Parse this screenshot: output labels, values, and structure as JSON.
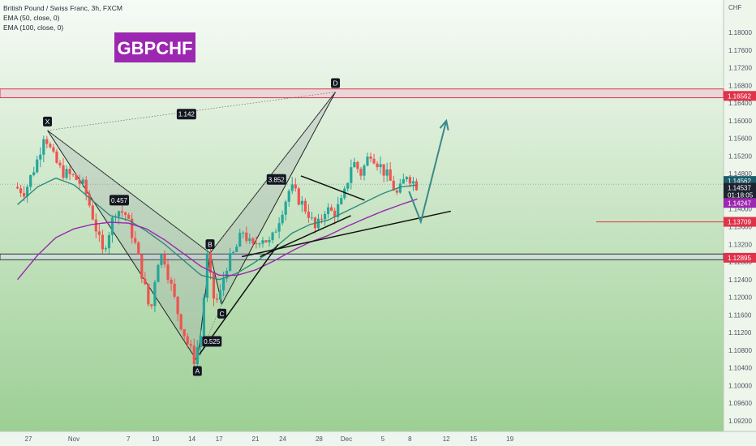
{
  "header": {
    "title": "British Pound / Swiss Franc, 3h, FXCM",
    "indicators": [
      "EMA (50, close, 0)",
      "EMA (100, close, 0)"
    ],
    "symbol_badge": "GBPCHF",
    "currency": "CHF"
  },
  "colors": {
    "bull": "#26a69a",
    "bear": "#ef5350",
    "ema50": "#2e8b7a",
    "ema100": "#9c27b0",
    "resistance": "#e0334a",
    "badge": "#9c27b0",
    "arrow": "#3a8a8a"
  },
  "chart_data": {
    "type": "candlestick",
    "ylim": [
      1.09,
      1.19
    ],
    "y_ticks": [
      1.092,
      1.096,
      1.1,
      1.104,
      1.108,
      1.112,
      1.116,
      1.12,
      1.124,
      1.128,
      1.132,
      1.136,
      1.14,
      1.144,
      1.148,
      1.152,
      1.156,
      1.16,
      1.164,
      1.168,
      1.172,
      1.176,
      1.18
    ],
    "y_tick_labels": [
      "1.09200",
      "1.09600",
      "1.10000",
      "1.10400",
      "1.10800",
      "1.11200",
      "1.11600",
      "1.12000",
      "1.12400",
      "1.12800",
      "1.13200",
      "1.13600",
      "1.14000",
      "1.14400",
      "1.14800",
      "1.15200",
      "1.15600",
      "1.16000",
      "1.16400",
      "1.16800",
      "1.17200",
      "1.17600",
      "1.18000"
    ],
    "x_ticks": [
      {
        "label": "27",
        "day": -5
      },
      {
        "label": "Nov",
        "day": 0
      },
      {
        "label": "7",
        "day": 6
      },
      {
        "label": "10",
        "day": 9
      },
      {
        "label": "14",
        "day": 13
      },
      {
        "label": "17",
        "day": 16
      },
      {
        "label": "21",
        "day": 20
      },
      {
        "label": "24",
        "day": 23
      },
      {
        "label": "28",
        "day": 27
      },
      {
        "label": "Dec",
        "day": 30
      },
      {
        "label": "5",
        "day": 34
      },
      {
        "label": "8",
        "day": 37
      },
      {
        "label": "12",
        "day": 41
      },
      {
        "label": "15",
        "day": 44
      },
      {
        "label": "19",
        "day": 48
      }
    ],
    "price_key": [
      {
        "day": -6.2,
        "price": 1.145
      },
      {
        "day": -5.0,
        "price": 1.144
      },
      {
        "day": -3.5,
        "price": 1.152
      },
      {
        "day": -2.9,
        "price": 1.1575
      },
      {
        "day": -2.0,
        "price": 1.152
      },
      {
        "day": -1.0,
        "price": 1.1485
      },
      {
        "day": 0.5,
        "price": 1.147
      },
      {
        "day": 1.5,
        "price": 1.145
      },
      {
        "day": 2.5,
        "price": 1.138
      },
      {
        "day": 3.5,
        "price": 1.13
      },
      {
        "day": 5.0,
        "price": 1.14
      },
      {
        "day": 6.0,
        "price": 1.139
      },
      {
        "day": 7.0,
        "price": 1.133
      },
      {
        "day": 8.0,
        "price": 1.124
      },
      {
        "day": 8.8,
        "price": 1.116
      },
      {
        "day": 9.5,
        "price": 1.128
      },
      {
        "day": 10.2,
        "price": 1.13
      },
      {
        "day": 11.0,
        "price": 1.123
      },
      {
        "day": 12.0,
        "price": 1.115
      },
      {
        "day": 12.8,
        "price": 1.11
      },
      {
        "day": 13.6,
        "price": 1.106
      },
      {
        "day": 14.4,
        "price": 1.112
      },
      {
        "day": 15.0,
        "price": 1.1295
      },
      {
        "day": 15.7,
        "price": 1.12
      },
      {
        "day": 16.3,
        "price": 1.119
      },
      {
        "day": 17.1,
        "price": 1.127
      },
      {
        "day": 18.0,
        "price": 1.13
      },
      {
        "day": 19.0,
        "price": 1.135
      },
      {
        "day": 20.0,
        "price": 1.131
      },
      {
        "day": 21.0,
        "price": 1.134
      },
      {
        "day": 22.0,
        "price": 1.132
      },
      {
        "day": 23.3,
        "price": 1.14
      },
      {
        "day": 24.2,
        "price": 1.145
      },
      {
        "day": 25.2,
        "price": 1.142
      },
      {
        "day": 26.2,
        "price": 1.139
      },
      {
        "day": 27.0,
        "price": 1.135
      },
      {
        "day": 28.0,
        "price": 1.14
      },
      {
        "day": 29.0,
        "price": 1.139
      },
      {
        "day": 30.0,
        "price": 1.142
      },
      {
        "day": 31.0,
        "price": 1.151
      },
      {
        "day": 32.0,
        "price": 1.148
      },
      {
        "day": 33.0,
        "price": 1.153
      },
      {
        "day": 34.0,
        "price": 1.15
      },
      {
        "day": 35.0,
        "price": 1.147
      },
      {
        "day": 36.0,
        "price": 1.143
      },
      {
        "day": 37.0,
        "price": 1.148
      },
      {
        "day": 38.0,
        "price": 1.1455
      }
    ],
    "ema50_key": [
      {
        "day": -6.2,
        "price": 1.141
      },
      {
        "day": -4.0,
        "price": 1.145
      },
      {
        "day": -2.0,
        "price": 1.147
      },
      {
        "day": 0.0,
        "price": 1.1455
      },
      {
        "day": 2.0,
        "price": 1.142
      },
      {
        "day": 4.0,
        "price": 1.1385
      },
      {
        "day": 6.0,
        "price": 1.1375
      },
      {
        "day": 8.0,
        "price": 1.135
      },
      {
        "day": 10.0,
        "price": 1.132
      },
      {
        "day": 12.0,
        "price": 1.1285
      },
      {
        "day": 14.0,
        "price": 1.125
      },
      {
        "day": 16.0,
        "price": 1.124
      },
      {
        "day": 18.0,
        "price": 1.1255
      },
      {
        "day": 20.0,
        "price": 1.128
      },
      {
        "day": 22.0,
        "price": 1.131
      },
      {
        "day": 24.0,
        "price": 1.1345
      },
      {
        "day": 26.0,
        "price": 1.1365
      },
      {
        "day": 28.0,
        "price": 1.1375
      },
      {
        "day": 30.0,
        "price": 1.1395
      },
      {
        "day": 32.0,
        "price": 1.1415
      },
      {
        "day": 34.0,
        "price": 1.1435
      },
      {
        "day": 36.0,
        "price": 1.145
      },
      {
        "day": 38.0,
        "price": 1.1455
      }
    ],
    "ema100_key": [
      {
        "day": -6.2,
        "price": 1.124
      },
      {
        "day": -4.0,
        "price": 1.1295
      },
      {
        "day": -2.0,
        "price": 1.1335
      },
      {
        "day": 0.0,
        "price": 1.1355
      },
      {
        "day": 2.0,
        "price": 1.1365
      },
      {
        "day": 4.0,
        "price": 1.137
      },
      {
        "day": 6.0,
        "price": 1.1368
      },
      {
        "day": 8.0,
        "price": 1.1355
      },
      {
        "day": 10.0,
        "price": 1.133
      },
      {
        "day": 12.0,
        "price": 1.13
      },
      {
        "day": 14.0,
        "price": 1.127
      },
      {
        "day": 16.0,
        "price": 1.125
      },
      {
        "day": 18.0,
        "price": 1.125
      },
      {
        "day": 20.0,
        "price": 1.1262
      },
      {
        "day": 22.0,
        "price": 1.1282
      },
      {
        "day": 24.0,
        "price": 1.1305
      },
      {
        "day": 26.0,
        "price": 1.1325
      },
      {
        "day": 28.0,
        "price": 1.134
      },
      {
        "day": 30.0,
        "price": 1.136
      },
      {
        "day": 32.0,
        "price": 1.1378
      },
      {
        "day": 34.0,
        "price": 1.1395
      },
      {
        "day": 36.0,
        "price": 1.141
      },
      {
        "day": 38.0,
        "price": 1.1424
      }
    ],
    "harmonic_points": [
      {
        "label": "X",
        "day": -2.9,
        "price": 1.1578
      },
      {
        "label": "A",
        "day": 13.6,
        "price": 1.1055
      },
      {
        "label": "B",
        "day": 15.0,
        "price": 1.13
      },
      {
        "label": "C",
        "day": 16.3,
        "price": 1.1185
      },
      {
        "label": "D",
        "day": 28.8,
        "price": 1.1665
      }
    ],
    "ratio_labels": [
      {
        "text": "1.142",
        "day": 12.4,
        "price": 1.1615
      },
      {
        "text": "0.457",
        "day": 5.0,
        "price": 1.142
      },
      {
        "text": "0.525",
        "day": 15.2,
        "price": 1.11
      },
      {
        "text": "3.852",
        "day": 22.3,
        "price": 1.1467
      }
    ],
    "price_labels": [
      {
        "text": "1.16562",
        "price": 1.16562,
        "kind": "resistance"
      },
      {
        "text": "1.14562",
        "price": 1.14562,
        "kind": "current"
      },
      {
        "text": "1.14537",
        "price": 1.14537,
        "kind": "ema50"
      },
      {
        "text": "01:18:05",
        "price": 1.14537,
        "kind": "countdown"
      },
      {
        "text": "1.14247",
        "price": 1.14247,
        "kind": "ema100"
      },
      {
        "text": "1.13709",
        "price": 1.13709,
        "kind": "level"
      },
      {
        "text": "1.12895",
        "price": 1.12895,
        "kind": "support"
      }
    ],
    "zones": [
      {
        "name": "resistance",
        "from": 1.1652,
        "to": 1.1672
      },
      {
        "name": "support",
        "from": 1.1285,
        "to": 1.1298
      }
    ],
    "lines": [
      {
        "name": "trend-support-steep",
        "from": {
          "day": 13.8,
          "price": 1.107
        },
        "to": {
          "day": 22.5,
          "price": 1.132
        }
      },
      {
        "name": "trend-support-flat",
        "from": {
          "day": 18.5,
          "price": 1.1292
        },
        "to": {
          "day": 41.5,
          "price": 1.1395
        }
      },
      {
        "name": "trend-support-mid",
        "from": {
          "day": 20.5,
          "price": 1.1292
        },
        "to": {
          "day": 30.5,
          "price": 1.1385
        }
      },
      {
        "name": "trend-resistance",
        "from": {
          "day": 25.0,
          "price": 1.1475
        },
        "to": {
          "day": 32.0,
          "price": 1.142
        }
      }
    ],
    "projection": [
      {
        "day": 36.9,
        "price": 1.144
      },
      {
        "day": 38.2,
        "price": 1.1371
      },
      {
        "day": 41.0,
        "price": 1.16
      }
    ]
  }
}
